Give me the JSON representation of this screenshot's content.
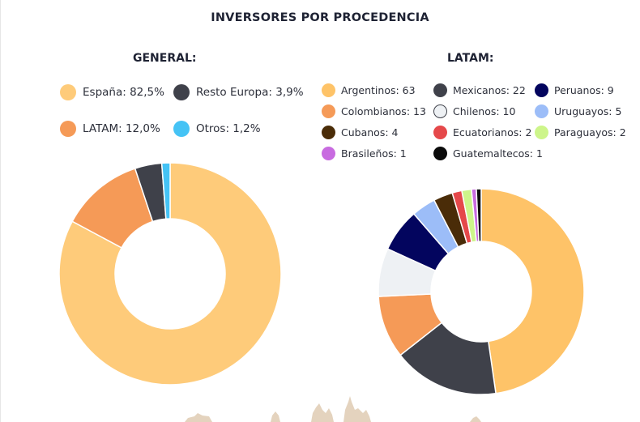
{
  "page": {
    "title": "INVERSORES POR PROCEDENCIA"
  },
  "chart_data": [
    {
      "type": "pie",
      "donut": true,
      "title": "GENERAL:",
      "legend_placement": "top",
      "slices": [
        {
          "label": "España: 82,5%",
          "name": "España",
          "value": 82.5,
          "color": "#FECB7A"
        },
        {
          "label": "Resto Europa: 3,9%",
          "name": "Resto Europa",
          "value": 3.9,
          "color": "#3F414A"
        },
        {
          "label": "LATAM: 12,0%",
          "name": "LATAM",
          "value": 12.0,
          "color": "#F59A57"
        },
        {
          "label": "Otros: 1,2%",
          "name": "Otros",
          "value": 1.2,
          "color": "#45C3F5"
        }
      ],
      "draw_order": [
        "España",
        "LATAM",
        "Resto Europa",
        "Otros"
      ]
    },
    {
      "type": "pie",
      "donut": true,
      "title": "LATAM:",
      "legend_placement": "top",
      "slices": [
        {
          "label": "Argentinos: 63",
          "name": "Argentinos",
          "value": 63,
          "color": "#FEC368"
        },
        {
          "label": "Mexicanos: 22",
          "name": "Mexicanos",
          "value": 22,
          "color": "#3F414A"
        },
        {
          "label": "Peruanos: 9",
          "name": "Peruanos",
          "value": 9,
          "color": "#03055E"
        },
        {
          "label": "Colombianos: 13",
          "name": "Colombianos",
          "value": 13,
          "color": "#F59A57"
        },
        {
          "label": "Chilenos: 10",
          "name": "Chilenos",
          "value": 10,
          "color": "#EEF1F4"
        },
        {
          "label": "Uruguayos: 5",
          "name": "Uruguayos",
          "value": 5,
          "color": "#9CBDF8"
        },
        {
          "label": "Cubanos: 4",
          "name": "Cubanos",
          "value": 4,
          "color": "#4A2C08"
        },
        {
          "label": "Ecuatorianos: 2",
          "name": "Ecuatorianos",
          "value": 2,
          "color": "#E5484A"
        },
        {
          "label": "Paraguayos: 2",
          "name": "Paraguayos",
          "value": 2,
          "color": "#CDF58A"
        },
        {
          "label": "Brasileños: 1",
          "name": "Brasileños",
          "value": 1,
          "color": "#C86BE0"
        },
        {
          "label": "Guatemaltecos: 1",
          "name": "Guatemaltecos",
          "value": 1,
          "color": "#0B0B0B"
        }
      ],
      "draw_order": [
        "Argentinos",
        "Mexicanos",
        "Colombianos",
        "Chilenos",
        "Peruanos",
        "Uruguayos",
        "Cubanos",
        "Ecuatorianos",
        "Paraguayos",
        "Brasileños",
        "Guatemaltecos"
      ]
    }
  ]
}
